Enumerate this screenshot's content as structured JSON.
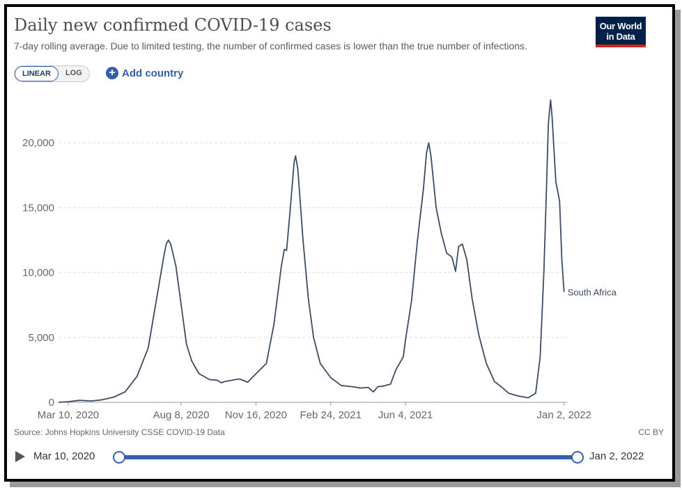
{
  "header": {
    "title": "Daily new confirmed COVID-19 cases",
    "subtitle": "7-day rolling average. Due to limited testing, the number of confirmed cases is lower than the true number of infections.",
    "logo_line1": "Our World",
    "logo_line2": "in Data"
  },
  "controls": {
    "linear_label": "LINEAR",
    "log_label": "LOG",
    "add_country_label": "Add country"
  },
  "footer": {
    "source": "Source: Johns Hopkins University CSSE COVID-19 Data",
    "license": "CC BY"
  },
  "timeline": {
    "start": "Mar 10, 2020",
    "end": "Jan 2, 2022"
  },
  "colors": {
    "line": "#3b4b61",
    "accent": "#3360a9",
    "logo_bg": "#002147",
    "logo_bar": "#ce261e"
  },
  "chart_data": {
    "type": "line",
    "title": "Daily new confirmed COVID-19 cases",
    "subtitle": "7-day rolling average. Due to limited testing, the number of confirmed cases is lower than the true number of infections.",
    "scale": "linear",
    "x_tick_labels": [
      "Mar 10, 2020",
      "Aug 8, 2020",
      "Nov 16, 2020",
      "Feb 24, 2021",
      "Jun 4, 2021",
      "Jan 2, 2022"
    ],
    "y_ticks": [
      0,
      5000,
      10000,
      15000,
      20000
    ],
    "y_tick_labels": [
      "0",
      "5,000",
      "10,000",
      "15,000",
      "20,000"
    ],
    "xlim": [
      "2020-02-26",
      "2022-01-06"
    ],
    "ylim": [
      0,
      23500
    ],
    "grid": "horizontal dashed",
    "series": [
      {
        "name": "South Africa",
        "points": [
          [
            "2020-02-26",
            0
          ],
          [
            "2020-03-10",
            50
          ],
          [
            "2020-03-25",
            150
          ],
          [
            "2020-04-10",
            100
          ],
          [
            "2020-04-25",
            200
          ],
          [
            "2020-05-10",
            400
          ],
          [
            "2020-05-25",
            800
          ],
          [
            "2020-06-10",
            2000
          ],
          [
            "2020-06-25",
            4200
          ],
          [
            "2020-07-05",
            7600
          ],
          [
            "2020-07-15",
            11000
          ],
          [
            "2020-07-19",
            12200
          ],
          [
            "2020-07-22",
            12500
          ],
          [
            "2020-07-25",
            12200
          ],
          [
            "2020-08-01",
            10500
          ],
          [
            "2020-08-08",
            7500
          ],
          [
            "2020-08-15",
            4500
          ],
          [
            "2020-08-22",
            3200
          ],
          [
            "2020-09-01",
            2200
          ],
          [
            "2020-09-15",
            1750
          ],
          [
            "2020-09-25",
            1700
          ],
          [
            "2020-10-01",
            1500
          ],
          [
            "2020-10-05",
            1600
          ],
          [
            "2020-10-15",
            1700
          ],
          [
            "2020-10-25",
            1800
          ],
          [
            "2020-11-05",
            1550
          ],
          [
            "2020-11-16",
            2200
          ],
          [
            "2020-11-30",
            3000
          ],
          [
            "2020-12-10",
            6000
          ],
          [
            "2020-12-20",
            10500
          ],
          [
            "2020-12-24",
            11800
          ],
          [
            "2020-12-27",
            11700
          ],
          [
            "2021-01-01",
            15000
          ],
          [
            "2021-01-06",
            18500
          ],
          [
            "2021-01-08",
            19000
          ],
          [
            "2021-01-11",
            18000
          ],
          [
            "2021-01-18",
            12500
          ],
          [
            "2021-01-25",
            8000
          ],
          [
            "2021-02-01",
            5000
          ],
          [
            "2021-02-10",
            3000
          ],
          [
            "2021-02-24",
            1900
          ],
          [
            "2021-03-10",
            1300
          ],
          [
            "2021-03-25",
            1200
          ],
          [
            "2021-04-05",
            1100
          ],
          [
            "2021-04-15",
            1150
          ],
          [
            "2021-04-22",
            800
          ],
          [
            "2021-04-28",
            1200
          ],
          [
            "2021-05-05",
            1250
          ],
          [
            "2021-05-15",
            1400
          ],
          [
            "2021-05-22",
            2500
          ],
          [
            "2021-06-01",
            3500
          ],
          [
            "2021-06-04",
            4800
          ],
          [
            "2021-06-12",
            7800
          ],
          [
            "2021-06-20",
            12500
          ],
          [
            "2021-06-28",
            16500
          ],
          [
            "2021-07-02",
            19200
          ],
          [
            "2021-07-05",
            20000
          ],
          [
            "2021-07-08",
            19000
          ],
          [
            "2021-07-15",
            15000
          ],
          [
            "2021-07-22",
            13000
          ],
          [
            "2021-07-29",
            11500
          ],
          [
            "2021-08-05",
            11200
          ],
          [
            "2021-08-10",
            10100
          ],
          [
            "2021-08-14",
            12000
          ],
          [
            "2021-08-19",
            12200
          ],
          [
            "2021-08-25",
            11000
          ],
          [
            "2021-09-01",
            8000
          ],
          [
            "2021-09-10",
            5200
          ],
          [
            "2021-09-20",
            3000
          ],
          [
            "2021-10-01",
            1600
          ],
          [
            "2021-10-10",
            1200
          ],
          [
            "2021-10-20",
            700
          ],
          [
            "2021-11-01",
            500
          ],
          [
            "2021-11-15",
            350
          ],
          [
            "2021-11-25",
            700
          ],
          [
            "2021-12-01",
            3500
          ],
          [
            "2021-12-06",
            10000
          ],
          [
            "2021-12-09",
            15500
          ],
          [
            "2021-12-12",
            21500
          ],
          [
            "2021-12-15",
            23300
          ],
          [
            "2021-12-17",
            22000
          ],
          [
            "2021-12-22",
            17000
          ],
          [
            "2021-12-27",
            15500
          ],
          [
            "2021-12-30",
            11000
          ],
          [
            "2022-01-02",
            8500
          ]
        ]
      }
    ]
  }
}
